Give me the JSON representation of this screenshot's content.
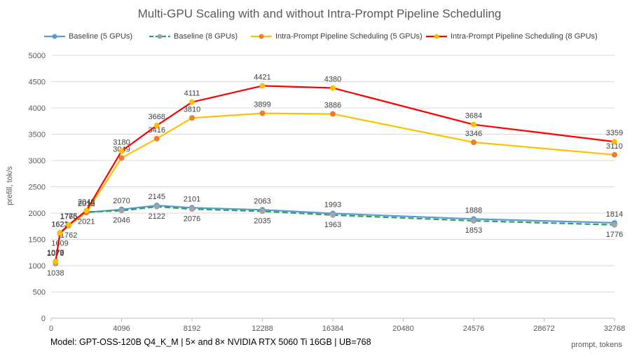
{
  "chart_data": {
    "type": "line",
    "title": "Multi-GPU Scaling with and without Intra-Prompt Pipeline Scheduling",
    "xlabel": "prompt, tokens",
    "ylabel": "prefill, tok/s",
    "footer": "Model: GPT-OSS-120B Q4_K_M  | 5× and 8× NVIDIA RTX 5060 Ti 16GB | UB=768",
    "xlim": [
      0,
      32768
    ],
    "ylim": [
      0,
      5000
    ],
    "x_ticks": [
      0,
      4096,
      8192,
      12288,
      16384,
      20480,
      24576,
      28672,
      32768
    ],
    "y_ticks": [
      0,
      500,
      1000,
      1500,
      2000,
      2500,
      3000,
      3500,
      4000,
      4500,
      5000
    ],
    "grid": "horizontal",
    "legend_position": "top",
    "series": [
      {
        "name": "Baseline (5 GPUs)",
        "color": "#5b9bd5",
        "line_style": "solid",
        "marker_color": "#5b9bd5",
        "label_position": "above",
        "x": [
          256,
          512,
          1024,
          2048,
          4096,
          6144,
          8192,
          12288,
          16384,
          24576,
          32768
        ],
        "y": [
          1079,
          1623,
          1776,
          2012,
          2070,
          2145,
          2101,
          2063,
          1993,
          1888,
          1814
        ]
      },
      {
        "name": "Baseline (8 GPUs)",
        "color": "#2e9e63",
        "line_style": "dashed",
        "marker_color": "#a5a5a5",
        "label_position": "below",
        "x": [
          256,
          512,
          1024,
          2048,
          4096,
          6144,
          8192,
          12288,
          16384,
          24576,
          32768
        ],
        "y": [
          1038,
          1609,
          1762,
          2021,
          2046,
          2122,
          2076,
          2035,
          1963,
          1853,
          1776
        ]
      },
      {
        "name": "Intra-Prompt Pipeline Scheduling (5 GPUs)",
        "color": "#ffc000",
        "line_style": "solid",
        "marker_color": "#ed7d31",
        "label_position": "above",
        "x": [
          256,
          512,
          1024,
          2048,
          4096,
          6144,
          8192,
          12288,
          16384,
          24576,
          32768
        ],
        "y": [
          1070,
          1621,
          1765,
          2015,
          3049,
          3416,
          3810,
          3899,
          3886,
          3346,
          3110
        ]
      },
      {
        "name": "Intra-Prompt Pipeline Scheduling (8 GPUs)",
        "color": "#ff0000",
        "line_style": "solid",
        "marker_color": "#ffc000",
        "label_position": "above",
        "x": [
          256,
          512,
          1024,
          2048,
          4096,
          6144,
          8192,
          12288,
          16384,
          24576,
          32768
        ],
        "y": [
          1077,
          1621,
          1775,
          2048,
          3180,
          3668,
          4111,
          4421,
          4380,
          3684,
          3359
        ]
      }
    ]
  }
}
